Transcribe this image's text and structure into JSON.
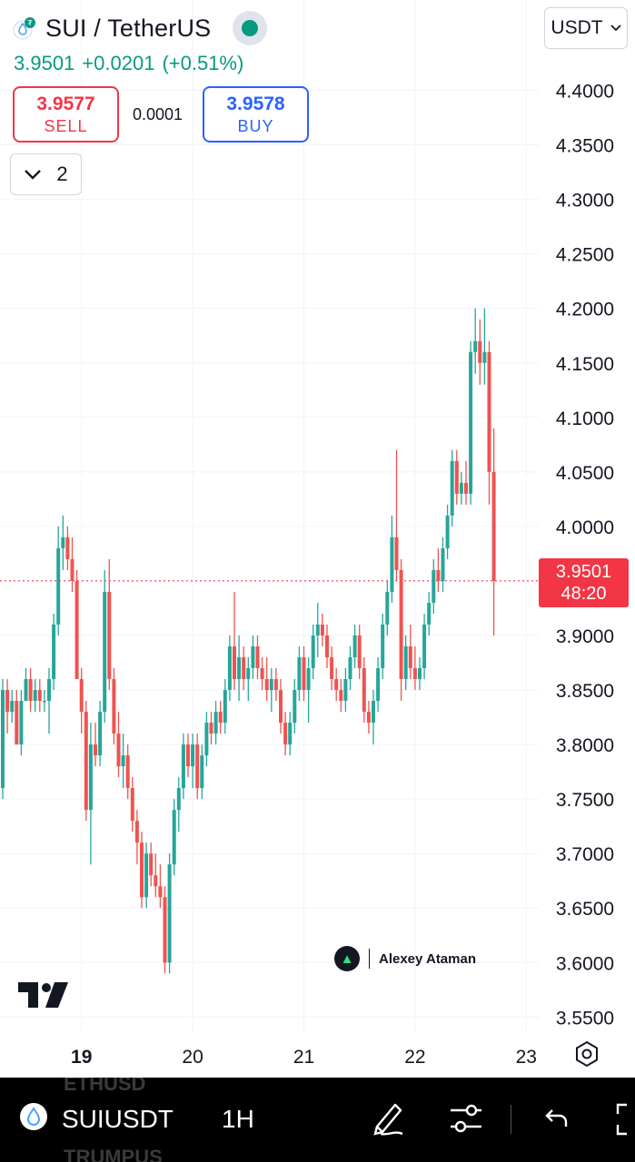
{
  "header": {
    "symbol_title": "SUI / TetherUS",
    "last_price": "3.9501",
    "change": "+0.0201",
    "change_percent": "(+0.51%)",
    "sell_price": "3.9577",
    "sell_label": "SELL",
    "spread": "0.0001",
    "buy_price": "3.9578",
    "buy_label": "BUY",
    "indicators_count": "2",
    "currency": "USDT",
    "status_color": "#089981"
  },
  "watermark": {
    "author": "Alexey Ataman"
  },
  "price_tag": {
    "price": "3.9501",
    "countdown": "48:20"
  },
  "toolbar": {
    "symbol": "SUIUSDT",
    "interval": "1H",
    "ghost_items": [
      "ETHUSD",
      "TRUMPUS"
    ],
    "icons": [
      "sui-coin-icon",
      "drawing-pen-icon",
      "adjust-sliders-icon",
      "undo-icon",
      "fullscreen-icon"
    ]
  },
  "colors": {
    "up": "#26a69a",
    "down": "#ef5350",
    "up_text": "#089981",
    "down_text": "#f23645",
    "buy": "#2962ff"
  },
  "chart_data": {
    "type": "candlestick",
    "symbol": "SUIUSDT",
    "interval": "1H",
    "x_tick_labels": [
      "19",
      "20",
      "21",
      "22",
      "23"
    ],
    "y_tick_labels": [
      "4.4000",
      "4.3500",
      "4.3000",
      "4.2500",
      "4.2000",
      "4.1500",
      "4.1000",
      "4.0500",
      "4.0000",
      "3.9000",
      "3.8500",
      "3.8000",
      "3.7500",
      "3.7000",
      "3.6500",
      "3.6000",
      "3.5500"
    ],
    "ylim": [
      3.5353,
      4.4329
    ],
    "last_price_line": 3.9501,
    "candles": [
      [
        3.76,
        3.86,
        3.75,
        3.85
      ],
      [
        3.85,
        3.86,
        3.81,
        3.83
      ],
      [
        3.83,
        3.85,
        3.82,
        3.84
      ],
      [
        3.84,
        3.85,
        3.8,
        3.8
      ],
      [
        3.8,
        3.85,
        3.79,
        3.84
      ],
      [
        3.84,
        3.87,
        3.84,
        3.86
      ],
      [
        3.86,
        3.87,
        3.83,
        3.84
      ],
      [
        3.84,
        3.86,
        3.83,
        3.85
      ],
      [
        3.85,
        3.86,
        3.83,
        3.84
      ],
      [
        3.84,
        3.85,
        3.83,
        3.84
      ],
      [
        3.84,
        3.87,
        3.81,
        3.86
      ],
      [
        3.86,
        3.92,
        3.85,
        3.91
      ],
      [
        3.91,
        4.0,
        3.9,
        3.98
      ],
      [
        3.98,
        4.01,
        3.96,
        3.99
      ],
      [
        3.99,
        4.0,
        3.96,
        3.97
      ],
      [
        3.97,
        3.99,
        3.94,
        3.95
      ],
      [
        3.95,
        3.96,
        3.86,
        3.86
      ],
      [
        3.86,
        3.87,
        3.81,
        3.83
      ],
      [
        3.83,
        3.84,
        3.73,
        3.74
      ],
      [
        3.74,
        3.82,
        3.69,
        3.8
      ],
      [
        3.8,
        3.82,
        3.78,
        3.79
      ],
      [
        3.79,
        3.84,
        3.78,
        3.83
      ],
      [
        3.83,
        3.96,
        3.82,
        3.94
      ],
      [
        3.94,
        3.97,
        3.85,
        3.86
      ],
      [
        3.86,
        3.87,
        3.8,
        3.81
      ],
      [
        3.81,
        3.83,
        3.77,
        3.78
      ],
      [
        3.78,
        3.81,
        3.76,
        3.79
      ],
      [
        3.79,
        3.8,
        3.75,
        3.76
      ],
      [
        3.76,
        3.77,
        3.72,
        3.73
      ],
      [
        3.73,
        3.74,
        3.69,
        3.71
      ],
      [
        3.71,
        3.72,
        3.65,
        3.66
      ],
      [
        3.66,
        3.71,
        3.65,
        3.7
      ],
      [
        3.7,
        3.71,
        3.67,
        3.68
      ],
      [
        3.68,
        3.7,
        3.66,
        3.67
      ],
      [
        3.67,
        3.69,
        3.65,
        3.66
      ],
      [
        3.66,
        3.67,
        3.59,
        3.6
      ],
      [
        3.6,
        3.7,
        3.59,
        3.69
      ],
      [
        3.69,
        3.75,
        3.68,
        3.74
      ],
      [
        3.74,
        3.77,
        3.72,
        3.76
      ],
      [
        3.76,
        3.81,
        3.75,
        3.8
      ],
      [
        3.8,
        3.81,
        3.77,
        3.78
      ],
      [
        3.78,
        3.81,
        3.76,
        3.8
      ],
      [
        3.8,
        3.81,
        3.75,
        3.76
      ],
      [
        3.76,
        3.8,
        3.75,
        3.79
      ],
      [
        3.79,
        3.83,
        3.78,
        3.82
      ],
      [
        3.82,
        3.83,
        3.8,
        3.81
      ],
      [
        3.81,
        3.84,
        3.8,
        3.83
      ],
      [
        3.83,
        3.84,
        3.81,
        3.82
      ],
      [
        3.82,
        3.86,
        3.81,
        3.85
      ],
      [
        3.85,
        3.9,
        3.84,
        3.89
      ],
      [
        3.89,
        3.94,
        3.85,
        3.86
      ],
      [
        3.86,
        3.9,
        3.84,
        3.88
      ],
      [
        3.88,
        3.89,
        3.85,
        3.86
      ],
      [
        3.86,
        3.88,
        3.84,
        3.87
      ],
      [
        3.87,
        3.9,
        3.86,
        3.89
      ],
      [
        3.89,
        3.9,
        3.86,
        3.87
      ],
      [
        3.87,
        3.88,
        3.85,
        3.86
      ],
      [
        3.86,
        3.88,
        3.84,
        3.85
      ],
      [
        3.85,
        3.87,
        3.83,
        3.86
      ],
      [
        3.86,
        3.87,
        3.84,
        3.85
      ],
      [
        3.85,
        3.86,
        3.81,
        3.82
      ],
      [
        3.82,
        3.83,
        3.79,
        3.8
      ],
      [
        3.8,
        3.83,
        3.79,
        3.82
      ],
      [
        3.82,
        3.86,
        3.81,
        3.85
      ],
      [
        3.85,
        3.89,
        3.84,
        3.88
      ],
      [
        3.88,
        3.89,
        3.84,
        3.85
      ],
      [
        3.85,
        3.88,
        3.82,
        3.87
      ],
      [
        3.87,
        3.91,
        3.86,
        3.9
      ],
      [
        3.9,
        3.93,
        3.88,
        3.91
      ],
      [
        3.91,
        3.92,
        3.89,
        3.9
      ],
      [
        3.9,
        3.91,
        3.87,
        3.88
      ],
      [
        3.88,
        3.89,
        3.85,
        3.86
      ],
      [
        3.86,
        3.87,
        3.84,
        3.85
      ],
      [
        3.85,
        3.86,
        3.83,
        3.84
      ],
      [
        3.84,
        3.87,
        3.83,
        3.86
      ],
      [
        3.86,
        3.89,
        3.85,
        3.88
      ],
      [
        3.88,
        3.91,
        3.87,
        3.9
      ],
      [
        3.9,
        3.91,
        3.86,
        3.87
      ],
      [
        3.87,
        3.88,
        3.82,
        3.83
      ],
      [
        3.83,
        3.84,
        3.81,
        3.82
      ],
      [
        3.82,
        3.85,
        3.8,
        3.84
      ],
      [
        3.84,
        3.88,
        3.83,
        3.87
      ],
      [
        3.87,
        3.92,
        3.86,
        3.91
      ],
      [
        3.91,
        3.95,
        3.9,
        3.94
      ],
      [
        3.94,
        4.01,
        3.93,
        3.99
      ],
      [
        3.99,
        4.07,
        3.95,
        3.96
      ],
      [
        3.96,
        3.97,
        3.84,
        3.86
      ],
      [
        3.86,
        3.9,
        3.85,
        3.89
      ],
      [
        3.89,
        3.91,
        3.86,
        3.87
      ],
      [
        3.87,
        3.89,
        3.85,
        3.86
      ],
      [
        3.86,
        3.88,
        3.85,
        3.87
      ],
      [
        3.87,
        3.92,
        3.86,
        3.91
      ],
      [
        3.91,
        3.94,
        3.9,
        3.93
      ],
      [
        3.93,
        3.97,
        3.92,
        3.96
      ],
      [
        3.96,
        3.98,
        3.94,
        3.95
      ],
      [
        3.95,
        3.99,
        3.94,
        3.98
      ],
      [
        3.98,
        4.02,
        3.97,
        4.01
      ],
      [
        4.01,
        4.07,
        4.0,
        4.06
      ],
      [
        4.06,
        4.07,
        4.02,
        4.03
      ],
      [
        4.03,
        4.05,
        4.02,
        4.04
      ],
      [
        4.04,
        4.06,
        4.02,
        4.03
      ],
      [
        4.03,
        4.17,
        4.02,
        4.16
      ],
      [
        4.16,
        4.2,
        4.14,
        4.17
      ],
      [
        4.17,
        4.19,
        4.13,
        4.15
      ],
      [
        4.15,
        4.2,
        4.13,
        4.16
      ],
      [
        4.16,
        4.17,
        4.02,
        4.05
      ],
      [
        4.05,
        4.09,
        3.9,
        3.95
      ]
    ]
  }
}
